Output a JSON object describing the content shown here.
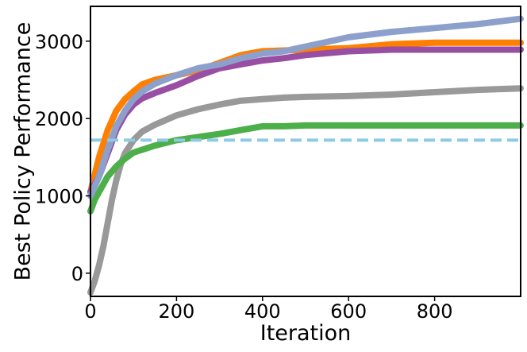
{
  "chart_data": {
    "type": "line",
    "title": "",
    "xlabel": "Iteration",
    "ylabel": "Best Policy Performance",
    "xlim": [
      0,
      1000
    ],
    "ylim": [
      -300,
      3450
    ],
    "xticks": [
      0,
      200,
      400,
      600,
      800
    ],
    "yticks": [
      0,
      1000,
      2000,
      3000
    ],
    "grid": false,
    "legend": "none",
    "series": [
      {
        "name": "gray",
        "color": "#999999",
        "x": [
          0,
          10,
          20,
          30,
          40,
          50,
          60,
          70,
          80,
          100,
          120,
          150,
          200,
          250,
          300,
          350,
          400,
          450,
          500,
          600,
          700,
          800,
          900,
          1000
        ],
        "y": [
          -250,
          -100,
          100,
          350,
          650,
          950,
          1200,
          1400,
          1550,
          1720,
          1830,
          1920,
          2040,
          2120,
          2180,
          2230,
          2250,
          2270,
          2280,
          2290,
          2310,
          2340,
          2370,
          2390
        ]
      },
      {
        "name": "green",
        "color": "#4daf4a",
        "x": [
          0,
          10,
          20,
          40,
          60,
          80,
          100,
          150,
          200,
          250,
          300,
          350,
          400,
          450,
          500,
          600,
          700,
          800,
          900,
          1000
        ],
        "y": [
          800,
          950,
          1050,
          1250,
          1380,
          1480,
          1560,
          1650,
          1720,
          1760,
          1800,
          1850,
          1900,
          1900,
          1910,
          1910,
          1910,
          1910,
          1910,
          1910
        ]
      },
      {
        "name": "orange",
        "color": "#ff7f00",
        "x": [
          0,
          20,
          40,
          60,
          80,
          100,
          120,
          150,
          200,
          250,
          300,
          350,
          400,
          500,
          600,
          700,
          800,
          900,
          1000
        ],
        "y": [
          1050,
          1500,
          1850,
          2100,
          2250,
          2350,
          2440,
          2500,
          2560,
          2620,
          2720,
          2820,
          2870,
          2890,
          2910,
          2960,
          2980,
          2980,
          2980
        ]
      },
      {
        "name": "purple",
        "color": "#984ea3",
        "x": [
          0,
          20,
          40,
          60,
          80,
          100,
          120,
          150,
          200,
          250,
          300,
          350,
          400,
          450,
          500,
          600,
          700,
          800,
          900,
          1000
        ],
        "y": [
          1050,
          1250,
          1550,
          1850,
          2050,
          2180,
          2260,
          2330,
          2430,
          2550,
          2650,
          2700,
          2750,
          2780,
          2820,
          2870,
          2890,
          2890,
          2890,
          2890
        ]
      },
      {
        "name": "blue",
        "color": "#8da0cb",
        "x": [
          0,
          20,
          40,
          60,
          80,
          100,
          120,
          150,
          200,
          250,
          300,
          350,
          400,
          450,
          500,
          600,
          700,
          800,
          900,
          1000
        ],
        "y": [
          1000,
          1250,
          1600,
          1900,
          2100,
          2250,
          2350,
          2450,
          2560,
          2650,
          2700,
          2780,
          2840,
          2870,
          2930,
          3050,
          3120,
          3170,
          3220,
          3290
        ]
      }
    ],
    "reference_line": {
      "name": "baseline",
      "color": "#8ecae6",
      "style": "dashed",
      "y": 1720
    }
  }
}
